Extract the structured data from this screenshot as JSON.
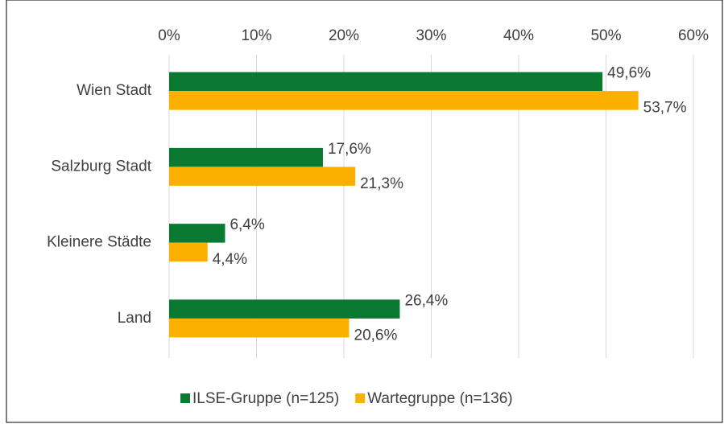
{
  "chart_data": {
    "type": "barh",
    "categories": [
      "Wien Stadt",
      "Salzburg Stadt",
      "Kleinere Städte",
      "Land"
    ],
    "series": [
      {
        "name": "ILSE-Gruppe (n=125)",
        "color": "#0a7a32",
        "values": [
          49.6,
          17.6,
          6.4,
          26.4
        ],
        "value_labels": [
          "49,6%",
          "17,6%",
          "6,4%",
          "26,4%"
        ]
      },
      {
        "name": "Wartegruppe (n=136)",
        "color": "#fbb000",
        "values": [
          53.7,
          21.3,
          4.4,
          20.6
        ],
        "value_labels": [
          "53,7%",
          "21,3%",
          "4,4%",
          "20,6%"
        ]
      }
    ],
    "xlim": [
      0,
      60
    ],
    "xticks": [
      {
        "value": 0,
        "label": "0%"
      },
      {
        "value": 10,
        "label": "10%"
      },
      {
        "value": 20,
        "label": "20%"
      },
      {
        "value": 30,
        "label": "30%"
      },
      {
        "value": 40,
        "label": "40%"
      },
      {
        "value": 50,
        "label": "50%"
      },
      {
        "value": 60,
        "label": "60%"
      }
    ],
    "grid": true
  }
}
